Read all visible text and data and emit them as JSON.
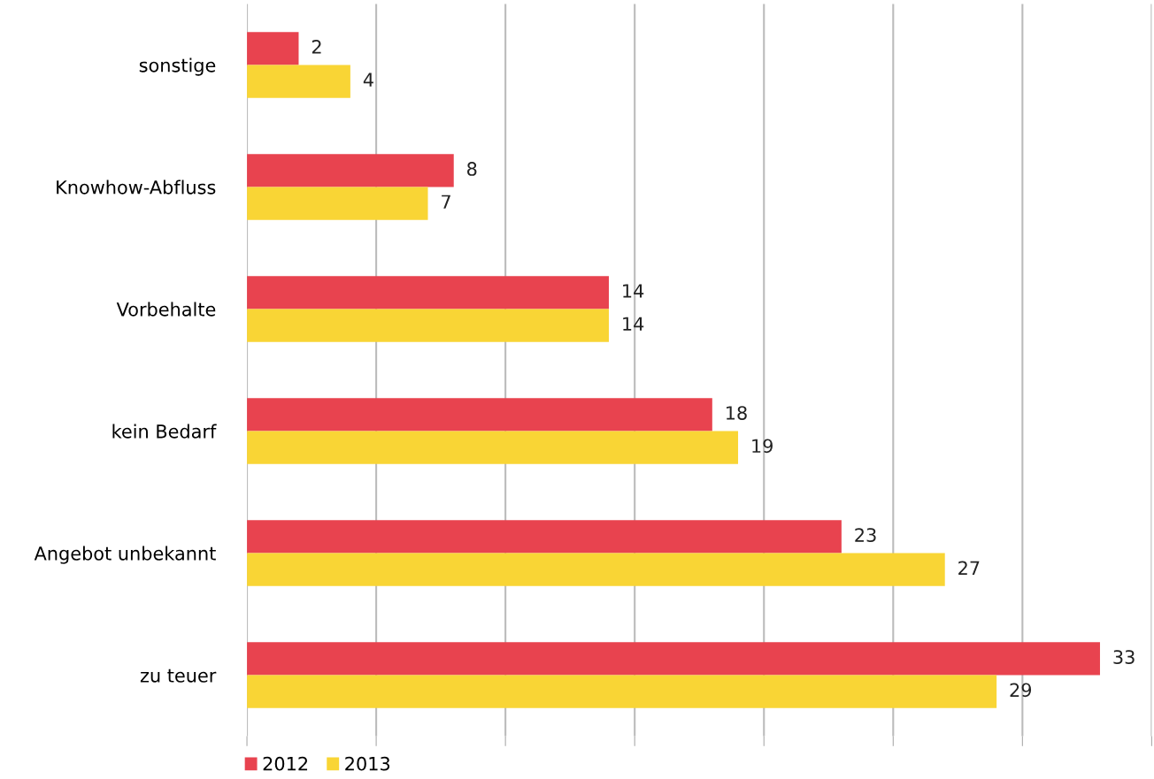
{
  "chart_data": {
    "type": "bar",
    "orientation": "horizontal",
    "categories": [
      "sonstige",
      "Knowhow-Abfluss",
      "Vorbehalte",
      "kein Bedarf",
      "Angebot unbekannt",
      "zu teuer"
    ],
    "series": [
      {
        "name": "2012",
        "color": "#e8434f",
        "values": [
          2,
          8,
          14,
          18,
          23,
          33
        ]
      },
      {
        "name": "2013",
        "color": "#f9d535",
        "values": [
          4,
          7,
          14,
          19,
          27,
          29
        ]
      }
    ],
    "xlim": [
      0,
      35
    ],
    "xticks": [
      {
        "value": 0,
        "label": null
      },
      {
        "value": 5,
        "label": null
      },
      {
        "value": 10,
        "label": null
      },
      {
        "value": 15,
        "label": null
      },
      {
        "value": 20,
        "label": null
      },
      {
        "value": 25,
        "label": null
      },
      {
        "value": 30,
        "label": null
      },
      {
        "value": 35,
        "label": null
      }
    ],
    "tick_labels": "y",
    "grid": "x",
    "data_labels": true,
    "legend": "bottom left"
  }
}
